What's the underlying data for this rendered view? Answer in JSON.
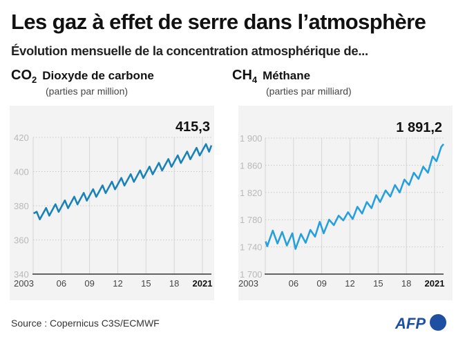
{
  "title": "Les gaz à effet de serre dans l’atmosphère",
  "subtitle": "Évolution mensuelle de la concentration atmosphérique de...",
  "source": "Source : Copernicus C3S/ECMWF",
  "logo": {
    "text": "AFP",
    "color": "#1e4fa0"
  },
  "chart_data": [
    {
      "type": "line",
      "formula": "CO",
      "formula_sub": "2",
      "name": "Dioxyde de carbone",
      "unit": "(parties par million)",
      "color": "#1b82b8",
      "last_value_label": "415,3",
      "ylim": [
        340,
        420
      ],
      "yticks": [
        "340",
        "360",
        "380",
        "400",
        "420"
      ],
      "xlim": [
        "2003-01",
        "2021-12"
      ],
      "xticks": [
        {
          "x": 2003,
          "label": "2003",
          "bold": false
        },
        {
          "x": 2006,
          "label": "06",
          "bold": false
        },
        {
          "x": 2009,
          "label": "09",
          "bold": false
        },
        {
          "x": 2012,
          "label": "12",
          "bold": false
        },
        {
          "x": 2015,
          "label": "15",
          "bold": false
        },
        {
          "x": 2018,
          "label": "18",
          "bold": false
        },
        {
          "x": 2021,
          "label": "2021",
          "bold": true
        }
      ],
      "grid": true,
      "points": [
        [
          "2003-01",
          375.5
        ],
        [
          "2003-05",
          376.5
        ],
        [
          "2003-09",
          372.0
        ],
        [
          "2004-05",
          378.7
        ],
        [
          "2004-09",
          374.2
        ],
        [
          "2005-05",
          380.9
        ],
        [
          "2005-09",
          376.4
        ],
        [
          "2006-05",
          383.1
        ],
        [
          "2006-09",
          378.6
        ],
        [
          "2007-05",
          385.3
        ],
        [
          "2007-09",
          380.8
        ],
        [
          "2008-05",
          387.5
        ],
        [
          "2008-09",
          383.0
        ],
        [
          "2009-05",
          389.7
        ],
        [
          "2009-09",
          385.2
        ],
        [
          "2010-05",
          391.9
        ],
        [
          "2010-09",
          387.4
        ],
        [
          "2011-05",
          394.1
        ],
        [
          "2011-09",
          389.6
        ],
        [
          "2012-05",
          396.3
        ],
        [
          "2012-09",
          391.8
        ],
        [
          "2013-05",
          398.5
        ],
        [
          "2013-09",
          394.0
        ],
        [
          "2014-05",
          400.7
        ],
        [
          "2014-09",
          396.2
        ],
        [
          "2015-05",
          402.9
        ],
        [
          "2015-09",
          398.4
        ],
        [
          "2016-05",
          405.1
        ],
        [
          "2016-09",
          400.6
        ],
        [
          "2017-05",
          407.3
        ],
        [
          "2017-09",
          402.8
        ],
        [
          "2018-05",
          409.5
        ],
        [
          "2018-09",
          405.0
        ],
        [
          "2019-05",
          411.7
        ],
        [
          "2019-09",
          407.2
        ],
        [
          "2020-05",
          413.9
        ],
        [
          "2020-09",
          409.4
        ],
        [
          "2021-05",
          416.1
        ],
        [
          "2021-09",
          411.6
        ],
        [
          "2021-12",
          415.3
        ]
      ]
    },
    {
      "type": "line",
      "formula": "CH",
      "formula_sub": "4",
      "name": "Méthane",
      "unit": "(parties par milliard)",
      "color": "#26a0dc",
      "last_value_label": "1 891,2",
      "ylim": [
        1700,
        1900
      ],
      "yticks": [
        "1 700",
        "1 740",
        "1 780",
        "1 820",
        "1 860",
        "1 900"
      ],
      "xlim": [
        "2003-01",
        "2021-12"
      ],
      "xticks": [
        {
          "x": 2003,
          "label": "2003",
          "bold": false
        },
        {
          "x": 2006,
          "label": "06",
          "bold": false
        },
        {
          "x": 2009,
          "label": "09",
          "bold": false
        },
        {
          "x": 2012,
          "label": "12",
          "bold": false
        },
        {
          "x": 2015,
          "label": "15",
          "bold": false
        },
        {
          "x": 2018,
          "label": "18",
          "bold": false
        },
        {
          "x": 2021,
          "label": "2021",
          "bold": true
        }
      ],
      "grid": true,
      "points": [
        [
          "2003-01",
          1748
        ],
        [
          "2003-03",
          1741
        ],
        [
          "2003-10",
          1764
        ],
        [
          "2004-04",
          1745
        ],
        [
          "2004-10",
          1762
        ],
        [
          "2005-04",
          1742
        ],
        [
          "2005-11",
          1760
        ],
        [
          "2006-03",
          1737
        ],
        [
          "2006-10",
          1759
        ],
        [
          "2007-04",
          1746
        ],
        [
          "2007-10",
          1765
        ],
        [
          "2008-04",
          1755
        ],
        [
          "2008-10",
          1777
        ],
        [
          "2009-03",
          1760
        ],
        [
          "2009-10",
          1780
        ],
        [
          "2010-04",
          1772
        ],
        [
          "2010-10",
          1786
        ],
        [
          "2011-04",
          1779
        ],
        [
          "2011-10",
          1791
        ],
        [
          "2012-04",
          1781
        ],
        [
          "2012-10",
          1799
        ],
        [
          "2013-04",
          1789
        ],
        [
          "2013-10",
          1806
        ],
        [
          "2014-04",
          1797
        ],
        [
          "2014-10",
          1816
        ],
        [
          "2015-03",
          1806
        ],
        [
          "2015-10",
          1823
        ],
        [
          "2016-04",
          1814
        ],
        [
          "2016-10",
          1831
        ],
        [
          "2017-04",
          1820
        ],
        [
          "2017-10",
          1839
        ],
        [
          "2018-04",
          1831
        ],
        [
          "2018-10",
          1849
        ],
        [
          "2019-04",
          1840
        ],
        [
          "2019-10",
          1858
        ],
        [
          "2020-04",
          1849
        ],
        [
          "2020-10",
          1873
        ],
        [
          "2021-03",
          1866
        ],
        [
          "2021-09",
          1887
        ],
        [
          "2021-12",
          1891.2
        ]
      ]
    }
  ]
}
